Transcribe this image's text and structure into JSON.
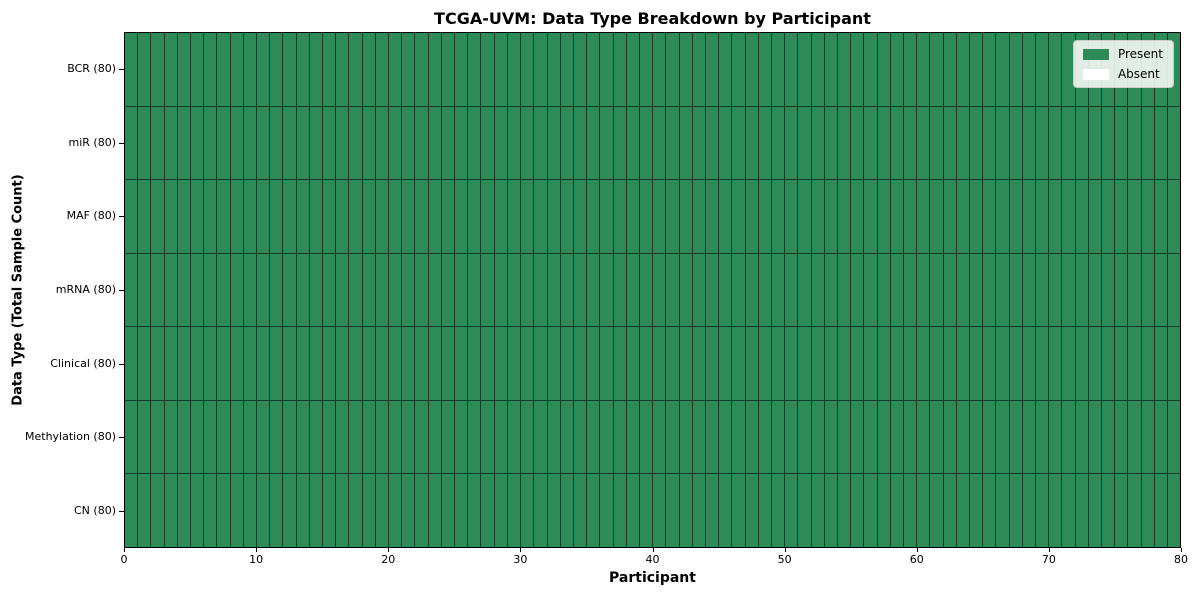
{
  "chart_data": {
    "type": "heatmap",
    "title": "TCGA-UVM: Data Type Breakdown by Participant",
    "xlabel": "Participant",
    "ylabel": "Data Type (Total Sample Count)",
    "xlim": [
      0,
      80
    ],
    "x_ticks": [
      0,
      10,
      20,
      30,
      40,
      50,
      60,
      70,
      80
    ],
    "n_participants": 80,
    "rows": [
      {
        "label": "BCR (80)",
        "data_type": "BCR",
        "total_samples": 80,
        "present_count": 80,
        "absent_count": 0
      },
      {
        "label": "miR (80)",
        "data_type": "miR",
        "total_samples": 80,
        "present_count": 80,
        "absent_count": 0
      },
      {
        "label": "MAF (80)",
        "data_type": "MAF",
        "total_samples": 80,
        "present_count": 80,
        "absent_count": 0
      },
      {
        "label": "mRNA (80)",
        "data_type": "mRNA",
        "total_samples": 80,
        "present_count": 80,
        "absent_count": 0
      },
      {
        "label": "Clinical (80)",
        "data_type": "Clinical",
        "total_samples": 80,
        "present_count": 80,
        "absent_count": 0
      },
      {
        "label": "Methylation (80)",
        "data_type": "Methylation",
        "total_samples": 80,
        "present_count": 80,
        "absent_count": 0
      },
      {
        "label": "CN (80)",
        "data_type": "CN",
        "total_samples": 80,
        "present_count": 80,
        "absent_count": 0
      }
    ],
    "legend": {
      "position": "upper right",
      "entries": [
        {
          "label": "Present",
          "color": "#2E8B57"
        },
        {
          "label": "Absent",
          "color": "#FFFFFF"
        }
      ]
    },
    "grid": true,
    "colors": {
      "present": "#2E8B57",
      "absent": "#FFFFFF",
      "cell_edge": "rgba(0,0,0,0.55)",
      "background": "#FFFFFF"
    }
  }
}
